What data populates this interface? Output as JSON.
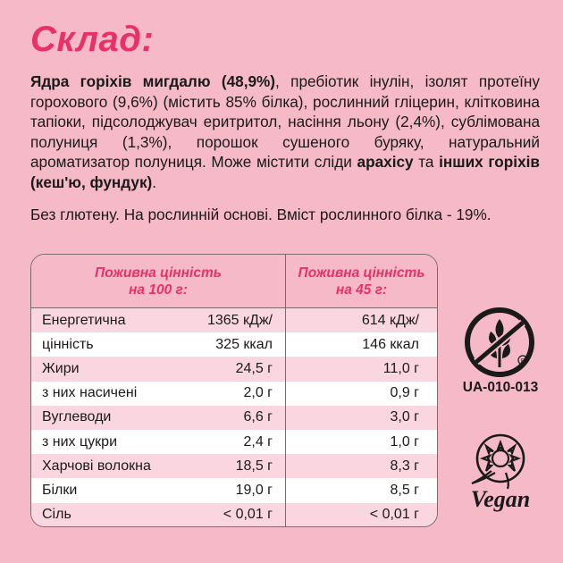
{
  "title": "Склад:",
  "ingredients": {
    "p1_bold": "Ядра горіхів мигдалю (48,9%)",
    "p1": ", пребіотик інулін, ізолят протеїну горохового (9,6%) (містить 85% білка), рослинний гліцерин, клітковина тапіоки, підсолоджувач еритритол, насіння льону (2,4%), сублімована полуниця (1,3%), порошок сушеного буряку, натуральний ароматизатор полуниця. Може містити сліди ",
    "p2_bold": "арахісу",
    "p2": " та ",
    "p3_bold": "інших горіхів (кеш'ю, фундук)",
    "p3": "."
  },
  "note": "Без глютену. На рослинній основі. Вміст рослинного білка - 19%.",
  "nutrition": {
    "header_100": "Поживна цінність на 100 г:",
    "header_45": "Поживна цінність на 45 г:",
    "rows": [
      {
        "name": "Енергетична",
        "v100": "1365 кДж/",
        "v45": "614 кДж/"
      },
      {
        "name": "цінність",
        "v100": "325 ккал",
        "v45": "146 ккал"
      },
      {
        "name": "Жири",
        "v100": "24,5 г",
        "v45": "11,0 г"
      },
      {
        "name": "з них насичені",
        "v100": "2,0 г",
        "v45": "0,9 г"
      },
      {
        "name": "Вуглеводи",
        "v100": "6,6 г",
        "v45": "3,0 г"
      },
      {
        "name": "з них цукри",
        "v100": "2,4 г",
        "v45": "1,0 г"
      },
      {
        "name": "Харчові волокна",
        "v100": "18,5 г",
        "v45": "8,3 г"
      },
      {
        "name": "Білки",
        "v100": "19,0 г",
        "v45": "8,5 г"
      },
      {
        "name": "Сіль",
        "v100": "< 0,01 г",
        "v45": "< 0,01 г"
      }
    ]
  },
  "badges": {
    "gluten_free_code": "UA-010-013",
    "gluten_free_icon": "crossed-grain-icon",
    "vegan_icon": "vegan-sunflower-logo",
    "vegan_logo_text": "Vegan"
  },
  "colors": {
    "background": "#f6b9c8",
    "accent": "#e8306b",
    "row_pink": "#fad7e0"
  }
}
